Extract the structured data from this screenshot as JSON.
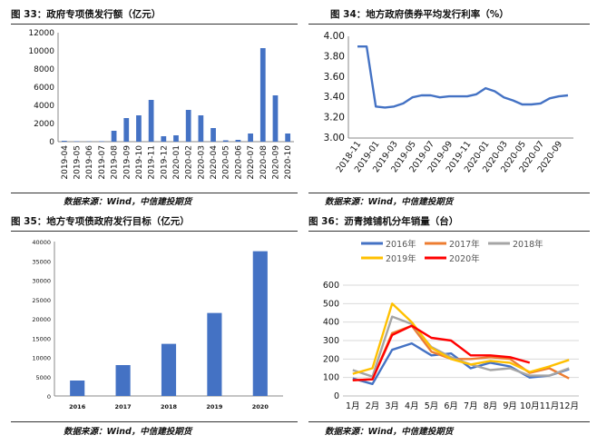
{
  "chart_data": [
    {
      "type": "bar",
      "title": "图 33：政府专项债发行额（亿元）",
      "source": "数据来源：Wind，中信建投期货",
      "categories": [
        "2019-04",
        "2019-05",
        "2019-06",
        "2019-07",
        "2019-08",
        "2019-09",
        "2019-10",
        "2019-11",
        "2019-12",
        "2020-01",
        "2020-02",
        "2020-03",
        "2020-04",
        "2020-05",
        "2020-06",
        "2020-07",
        "2020-08",
        "2020-09",
        "2020-10"
      ],
      "values": [
        100,
        50,
        30,
        50,
        1200,
        2600,
        2900,
        4600,
        600,
        700,
        3500,
        2900,
        1500,
        150,
        200,
        900,
        10300,
        5100,
        900
      ],
      "ylim": [
        0,
        12000
      ],
      "yticks": [
        "0",
        "2000",
        "4000",
        "6000",
        "8000",
        "10000",
        "12000"
      ],
      "colors": {
        "bar": "#4472c4"
      },
      "grid": false
    },
    {
      "type": "line",
      "title": "图 34：地方政府债券平均发行利率（%）",
      "source": "数据来源：Wind，中信建投期货",
      "x": [
        "2018-11",
        "2018-12",
        "2019-01",
        "2019-02",
        "2019-03",
        "2019-04",
        "2019-05",
        "2019-06",
        "2019-07",
        "2019-08",
        "2019-09",
        "2019-10",
        "2019-11",
        "2019-12",
        "2020-01",
        "2020-02",
        "2020-03",
        "2020-04",
        "2020-05",
        "2020-06",
        "2020-07",
        "2020-08",
        "2020-09",
        "2020-10"
      ],
      "xticks": [
        "2018-11",
        "2019-01",
        "2019-03",
        "2019-05",
        "2019-07",
        "2019-09",
        "2019-11",
        "2020-01",
        "2020-03",
        "2020-05",
        "2020-07",
        "2020-09"
      ],
      "values": [
        3.9,
        3.9,
        3.31,
        3.3,
        3.31,
        3.34,
        3.4,
        3.42,
        3.42,
        3.4,
        3.41,
        3.41,
        3.41,
        3.43,
        3.49,
        3.46,
        3.4,
        3.37,
        3.33,
        3.33,
        3.34,
        3.39,
        3.41,
        3.42
      ],
      "ylim": [
        3.0,
        4.0
      ],
      "yticks": [
        "3.00",
        "3.20",
        "3.40",
        "3.60",
        "3.80",
        "4.00"
      ],
      "colors": {
        "line": "#4472c4"
      },
      "grid": false
    },
    {
      "type": "bar",
      "title": "图 35：地方专项债政府发行目标（亿元）",
      "source": "数据来源：Wind，中信建投期货",
      "categories": [
        "2016",
        "2017",
        "2018",
        "2019",
        "2020"
      ],
      "values": [
        4000,
        8000,
        13500,
        21500,
        37500
      ],
      "ylim": [
        0,
        40000
      ],
      "yticks": [
        "0",
        "5000",
        "10000",
        "15000",
        "20000",
        "25000",
        "30000",
        "35000",
        "40000"
      ],
      "colors": {
        "bar": "#4472c4"
      },
      "grid": false
    },
    {
      "type": "line",
      "title": "图 36：沥青摊铺机分年销量（台）",
      "source": "数据来源：Wind，中信建投期货",
      "categories": [
        "1月",
        "2月",
        "3月",
        "4月",
        "5月",
        "6月",
        "7月",
        "8月",
        "9月",
        "10月",
        "11月",
        "12月"
      ],
      "ylim": [
        0,
        600
      ],
      "yticks": [
        "0",
        "100",
        "200",
        "300",
        "400",
        "500",
        "600"
      ],
      "legend_position": "top",
      "grid": true,
      "series": [
        {
          "name": "2016年",
          "color": "#4472c4",
          "values": [
            95,
            65,
            250,
            285,
            220,
            230,
            150,
            180,
            160,
            100,
            110,
            145
          ]
        },
        {
          "name": "2017年",
          "color": "#ed7d31",
          "values": [
            85,
            90,
            340,
            380,
            240,
            200,
            200,
            210,
            200,
            125,
            150,
            95
          ]
        },
        {
          "name": "2018年",
          "color": "#a5a5a5",
          "values": [
            140,
            105,
            430,
            390,
            265,
            210,
            170,
            140,
            150,
            110,
            110,
            150
          ]
        },
        {
          "name": "2019年",
          "color": "#ffc000",
          "values": [
            120,
            150,
            500,
            400,
            260,
            200,
            170,
            190,
            180,
            130,
            160,
            195
          ]
        },
        {
          "name": "2020年",
          "color": "#ff0000",
          "values": [
            85,
            90,
            330,
            380,
            315,
            300,
            220,
            220,
            210,
            180,
            null,
            null
          ]
        }
      ]
    }
  ]
}
